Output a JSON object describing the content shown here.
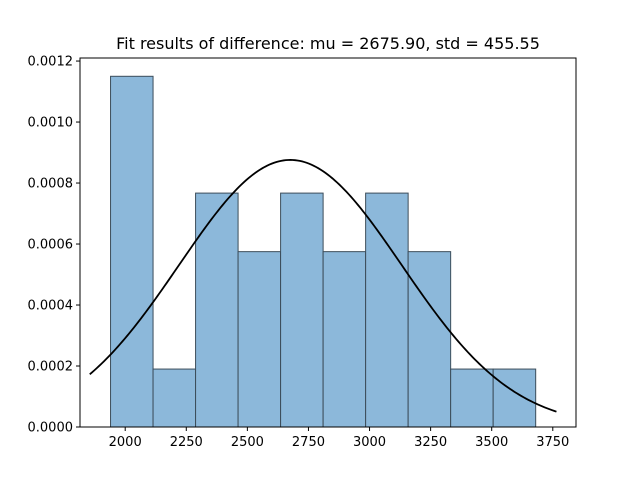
{
  "chart_data": {
    "type": "bar",
    "title": "Fit results of difference: mu = 2675.90,  std = 455.55",
    "xlabel": "",
    "ylabel": "",
    "xlim": [
      1815,
      3845
    ],
    "ylim": [
      0,
      0.00121
    ],
    "grid": false,
    "xticks": [
      2000,
      2250,
      2500,
      2750,
      3000,
      3250,
      3500,
      3750
    ],
    "xtick_labels": [
      "2000",
      "2250",
      "2500",
      "2750",
      "3000",
      "3250",
      "3500",
      "3750"
    ],
    "yticks": [
      0,
      0.0002,
      0.0004,
      0.0006,
      0.0008,
      0.001,
      0.0012
    ],
    "ytick_labels": [
      "0.0000",
      "0.0002",
      "0.0004",
      "0.0006",
      "0.0008",
      "0.0010",
      "0.0012"
    ],
    "histogram": {
      "bin_edges": [
        1940,
        2114,
        2288,
        2462,
        2636,
        2810,
        2984,
        3158,
        3332,
        3506,
        3680
      ],
      "densities": [
        0.00115,
        0.00019,
        0.000767,
        0.000575,
        0.000767,
        0.000575,
        0.000767,
        0.000575,
        0.00019,
        0.00019
      ],
      "color": "#8cb8da",
      "edge_color": "#3c4d5a"
    },
    "fit_curve": {
      "mu": 2675.9,
      "std": 455.55,
      "x_range": [
        1855,
        3765
      ],
      "color": "#000000"
    }
  }
}
